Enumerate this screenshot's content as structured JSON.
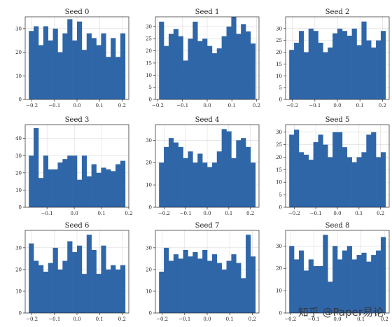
{
  "chart_data": [
    {
      "type": "bar",
      "title": "Seed 0",
      "xlim": [
        -0.23,
        0.23
      ],
      "ylim": [
        0,
        35
      ],
      "xticks": [
        -0.2,
        -0.1,
        0.0,
        0.1,
        0.2
      ],
      "xtick_labels": [
        "−0.2",
        "−0.1",
        "0.0",
        "0.1",
        "0.2"
      ],
      "yticks": [
        0,
        10,
        20,
        30
      ],
      "values": [
        29,
        31,
        23,
        31,
        25,
        30,
        20,
        28,
        34,
        25,
        33,
        21,
        28,
        26,
        23,
        28,
        18,
        26,
        18,
        28
      ]
    },
    {
      "type": "bar",
      "title": "Seed 1",
      "xlim": [
        -0.21,
        0.21
      ],
      "ylim": [
        0,
        34
      ],
      "xticks": [
        -0.2,
        -0.1,
        0.0,
        0.1,
        0.2
      ],
      "xtick_labels": [
        "−0.2",
        "−0.1",
        "0.0",
        "0.1",
        "0.2"
      ],
      "yticks": [
        0,
        5,
        10,
        15,
        20,
        25,
        30
      ],
      "values": [
        32,
        22,
        27,
        29,
        26,
        16,
        25,
        32,
        24,
        25,
        22,
        19,
        21,
        26,
        30,
        34,
        27,
        31,
        28,
        23
      ]
    },
    {
      "type": "bar",
      "title": "Seed 2",
      "xlim": [
        -0.23,
        0.23
      ],
      "ylim": [
        0,
        35
      ],
      "xticks": [
        -0.2,
        -0.1,
        0.0,
        0.1,
        0.2
      ],
      "xtick_labels": [
        "−0.2",
        "−0.1",
        "0.0",
        "0.1",
        "0.2"
      ],
      "yticks": [
        0,
        5,
        10,
        15,
        20,
        25,
        30
      ],
      "values": [
        21,
        24,
        29,
        20,
        30,
        29,
        24,
        20,
        22,
        28,
        30,
        29,
        27,
        30,
        23,
        33,
        25,
        22,
        25,
        29
      ]
    },
    {
      "type": "bar",
      "title": "Seed 3",
      "xlim": [
        -0.18,
        0.2
      ],
      "ylim": [
        0,
        48
      ],
      "xticks": [
        -0.1,
        0.0,
        0.1,
        0.2
      ],
      "xtick_labels": [
        "−0.1",
        "0.0",
        "0.1",
        "0.2"
      ],
      "yticks": [
        0,
        10,
        20,
        30,
        40
      ],
      "values": [
        30,
        46,
        17,
        30,
        22,
        22,
        26,
        28,
        30,
        30,
        16,
        30,
        18,
        25,
        20,
        23,
        22,
        21,
        25,
        27
      ]
    },
    {
      "type": "bar",
      "title": "Seed 4",
      "xlim": [
        -0.24,
        0.24
      ],
      "ylim": [
        0,
        37
      ],
      "xticks": [
        -0.2,
        -0.1,
        0.0,
        0.1,
        0.2
      ],
      "xtick_labels": [
        "−0.2",
        "−0.1",
        "0.0",
        "0.1",
        "0.2"
      ],
      "yticks": [
        0,
        10,
        20,
        30
      ],
      "values": [
        20,
        27,
        31,
        29,
        27,
        22,
        25,
        20,
        24,
        20,
        18,
        20,
        25,
        35,
        34,
        22,
        30,
        31,
        27,
        20
      ]
    },
    {
      "type": "bar",
      "title": "Seed 5",
      "xlim": [
        -0.24,
        0.24
      ],
      "ylim": [
        0,
        33
      ],
      "xticks": [
        -0.2,
        -0.1,
        0.0,
        0.1,
        0.2
      ],
      "xtick_labels": [
        "−0.2",
        "−0.1",
        "0.0",
        "0.1",
        "0.2"
      ],
      "yticks": [
        0,
        5,
        10,
        15,
        20,
        25,
        30
      ],
      "values": [
        29,
        31,
        22,
        21,
        19,
        26,
        29,
        25,
        20,
        30,
        30,
        24,
        20,
        18,
        20,
        22,
        29,
        30,
        20,
        22
      ]
    },
    {
      "type": "bar",
      "title": "Seed 6",
      "xlim": [
        -0.23,
        0.23
      ],
      "ylim": [
        0,
        38
      ],
      "xticks": [
        -0.2,
        -0.1,
        0.0,
        0.1,
        0.2
      ],
      "xtick_labels": [
        "−0.2",
        "−0.1",
        "0.0",
        "0.1",
        "0.2"
      ],
      "yticks": [
        0,
        10,
        20,
        30
      ],
      "values": [
        32,
        24,
        22,
        19,
        23,
        30,
        20,
        24,
        33,
        28,
        31,
        18,
        36,
        29,
        18,
        31,
        20,
        22,
        20,
        22
      ]
    },
    {
      "type": "bar",
      "title": "Seed 7",
      "xlim": [
        -0.23,
        0.23
      ],
      "ylim": [
        0,
        38
      ],
      "xticks": [
        -0.2,
        -0.1,
        0.0,
        0.1,
        0.2
      ],
      "xtick_labels": [
        "−0.2",
        "−0.1",
        "0.0",
        "0.1",
        "0.2"
      ],
      "yticks": [
        0,
        10,
        20,
        30
      ],
      "values": [
        19,
        30,
        24,
        27,
        25,
        29,
        26,
        28,
        25,
        29,
        24,
        27,
        23,
        20,
        24,
        27,
        23,
        16,
        36,
        26
      ]
    },
    {
      "type": "bar",
      "title": "Seed 8",
      "xlim": [
        -0.22,
        0.22
      ],
      "ylim": [
        0,
        37
      ],
      "xticks": [
        -0.2,
        -0.1,
        0.0,
        0.1,
        0.2
      ],
      "xtick_labels": [
        "−0.2",
        "−0.1",
        "0.0",
        "0.1",
        "0.2"
      ],
      "yticks": [
        0,
        10,
        20,
        30
      ],
      "values": [
        30,
        24,
        28,
        19,
        24,
        21,
        21,
        35,
        14,
        30,
        24,
        28,
        30,
        24,
        26,
        27,
        23,
        26,
        28,
        34
      ]
    }
  ],
  "colors": {
    "bar": "#2f66a8",
    "grid": "#d9d9d9",
    "axis": "#222222"
  },
  "watermark": "知乎 @Paper易论"
}
